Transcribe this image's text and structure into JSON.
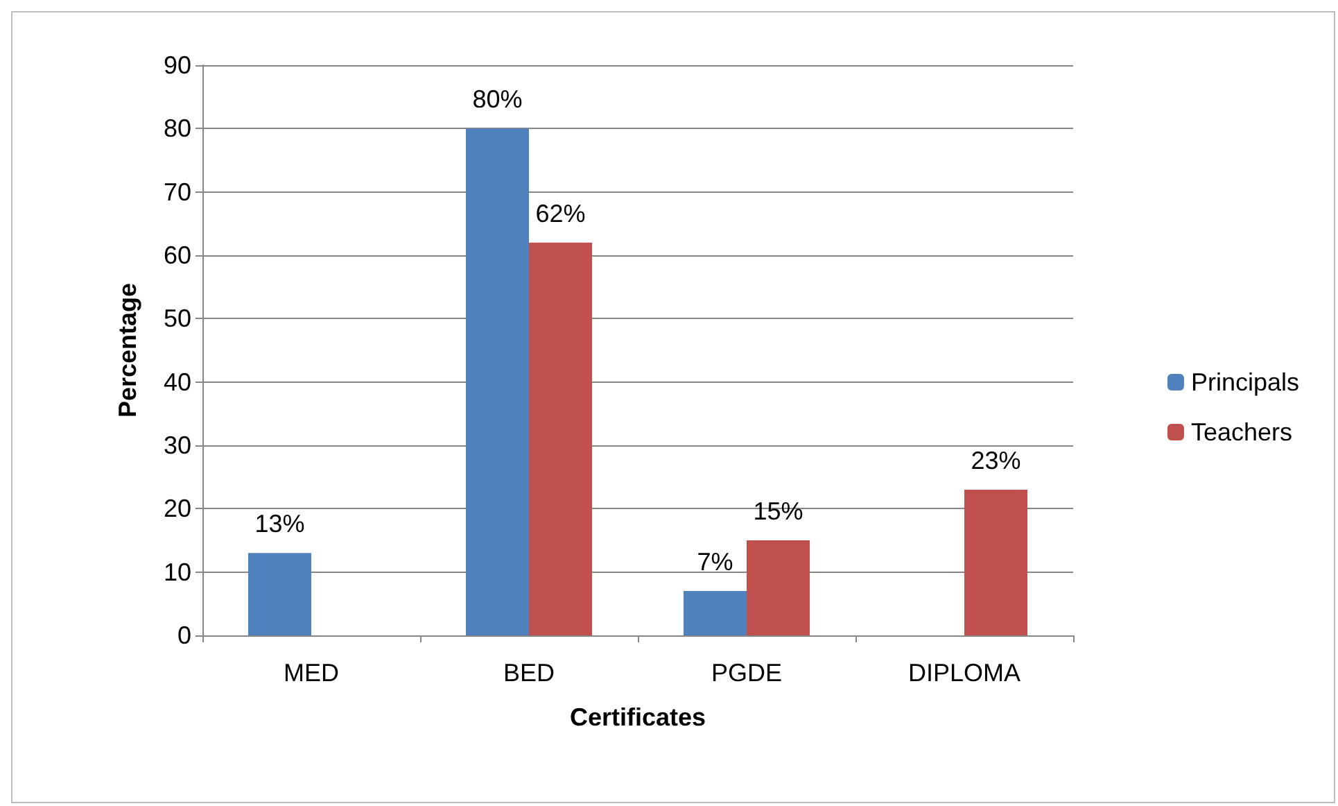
{
  "chart_data": {
    "type": "bar",
    "xlabel": "Certificates",
    "ylabel": "Percentage",
    "categories": [
      "MED",
      "BED",
      "PGDE",
      "DIPLOMA"
    ],
    "series": [
      {
        "name": "Principals",
        "color": "#4f81bd",
        "values": [
          13,
          80,
          7,
          null
        ],
        "value_labels": [
          "13%",
          "80%",
          "7%",
          null
        ]
      },
      {
        "name": "Teachers",
        "color": "#c0504d",
        "values": [
          null,
          62,
          15,
          23
        ],
        "value_labels": [
          null,
          "62%",
          "15%",
          "23%"
        ]
      }
    ],
    "ylim": [
      0,
      90
    ],
    "yticks": [
      0,
      10,
      20,
      30,
      40,
      50,
      60,
      70,
      80,
      90
    ],
    "grid": "y",
    "legend": "right"
  }
}
